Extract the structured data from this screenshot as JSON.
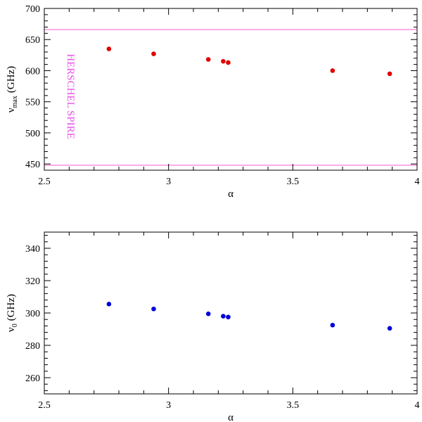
{
  "chart_data": [
    {
      "type": "scatter",
      "xlabel": "α",
      "ylabel": {
        "main": "ν",
        "sub": "max",
        "unit": "(GHz)"
      },
      "xlim": [
        2.5,
        4.0
      ],
      "ylim": [
        440,
        700
      ],
      "xticks": [
        2.5,
        3,
        3.5,
        4
      ],
      "xtick_labels": [
        "2.5",
        "3",
        "3.5",
        "4"
      ],
      "yticks": [
        450,
        500,
        550,
        600,
        650,
        700
      ],
      "ytick_labels": [
        "450",
        "500",
        "550",
        "600",
        "650",
        "700"
      ],
      "grid": false,
      "series": [
        {
          "color": "#e00000",
          "x": [
            2.76,
            2.94,
            3.16,
            3.22,
            3.24,
            3.66,
            3.89
          ],
          "y": [
            635,
            627,
            618,
            615,
            613,
            600,
            595
          ]
        }
      ],
      "hlines": [
        {
          "y": 666,
          "color": "#ff99e6"
        },
        {
          "y": 448,
          "color": "#ff99e6"
        }
      ],
      "annotation": {
        "text": "HERSCHEL SPIRE",
        "color": "#e64ee6"
      }
    },
    {
      "type": "scatter",
      "xlabel": "α",
      "ylabel": {
        "main": "ν",
        "sub": "0",
        "unit": "(GHz)"
      },
      "xlim": [
        2.5,
        4.0
      ],
      "ylim": [
        250,
        350
      ],
      "xticks": [
        2.5,
        3,
        3.5,
        4
      ],
      "xtick_labels": [
        "2.5",
        "3",
        "3.5",
        "4"
      ],
      "yticks": [
        260,
        280,
        300,
        320,
        340
      ],
      "ytick_labels": [
        "260",
        "280",
        "300",
        "320",
        "340"
      ],
      "grid": false,
      "series": [
        {
          "color": "#0000d8",
          "x": [
            2.76,
            2.94,
            3.16,
            3.22,
            3.24,
            3.66,
            3.89
          ],
          "y": [
            305.5,
            302.5,
            299.5,
            298,
            297.5,
            292.5,
            290.5
          ]
        }
      ]
    }
  ]
}
